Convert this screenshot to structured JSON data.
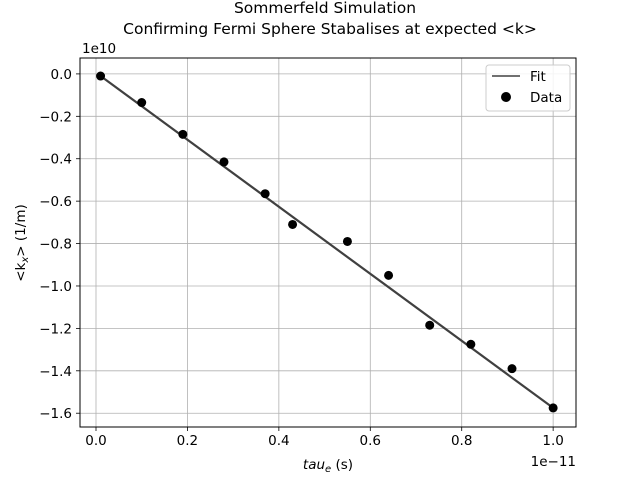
{
  "chart_data": {
    "type": "scatter",
    "title_lines": [
      "Sommerfeld Simulation",
      "Confirming Fermi Sphere Stabalises at expected <k>"
    ],
    "xlabel_base": "tau",
    "xlabel_sub": "e",
    "xlabel_unit": " (s)",
    "ylabel_pre": "<k",
    "ylabel_sub": "x",
    "ylabel_post": "> (1/m)",
    "x_offset_text": "1e−11",
    "y_offset_text": "1e10",
    "xlim": [
      -0.035,
      1.05
    ],
    "ylim": [
      -1.665,
      0.075
    ],
    "x_ticks": [
      0.0,
      0.2,
      0.4,
      0.6,
      0.8,
      1.0
    ],
    "x_tick_labels": [
      "0.0",
      "0.2",
      "0.4",
      "0.6",
      "0.8",
      "1.0"
    ],
    "y_ticks": [
      0.0,
      -0.2,
      -0.4,
      -0.6,
      -0.8,
      -1.0,
      -1.2,
      -1.4,
      -1.6
    ],
    "y_tick_labels": [
      "0.0",
      "−0.2",
      "−0.4",
      "−0.6",
      "−0.8",
      "−1.0",
      "−1.2",
      "−1.4",
      "−1.6"
    ],
    "grid": true,
    "legend_position": "top-right",
    "series": [
      {
        "name": "Fit",
        "kind": "line",
        "color": "#404040",
        "x": [
          0.01,
          1.0
        ],
        "y": [
          -0.01,
          -1.575
        ]
      },
      {
        "name": "Data",
        "kind": "points",
        "color": "#000000",
        "x": [
          0.01,
          0.1,
          0.19,
          0.28,
          0.37,
          0.43,
          0.55,
          0.64,
          0.73,
          0.82,
          0.91,
          1.0
        ],
        "y": [
          -0.01,
          -0.135,
          -0.285,
          -0.415,
          -0.565,
          -0.71,
          -0.79,
          -0.95,
          -1.185,
          -1.275,
          -1.39,
          -1.575
        ]
      }
    ]
  }
}
